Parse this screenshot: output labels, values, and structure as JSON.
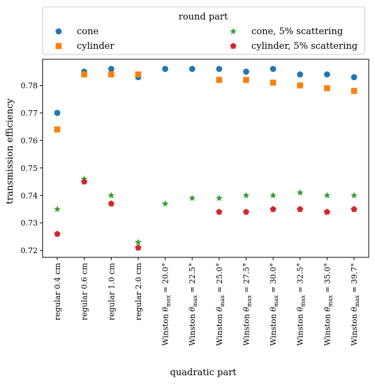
{
  "chart_data": {
    "type": "scatter",
    "categories": [
      "regular 0.4 cm",
      "regular 0.6 cm",
      "regular 1.0 cm",
      "regular 2.0 cm",
      "Winston θmax = 20.0°",
      "Winston θmax = 22.5°",
      "Winston θmax = 25.0°",
      "Winston θmax = 27.5°",
      "Winston θmax = 30.0°",
      "Winston θmax = 32.5°",
      "Winston θmax = 35.0°",
      "Winston θmax = 39.7°"
    ],
    "series": [
      {
        "name": "cone",
        "marker": "circle",
        "color": "#1f77b4",
        "values": [
          0.77,
          0.785,
          0.786,
          0.783,
          0.786,
          0.786,
          0.786,
          0.785,
          0.786,
          0.784,
          0.784,
          0.783
        ]
      },
      {
        "name": "cylinder",
        "marker": "square",
        "color": "#ff7f0e",
        "values": [
          0.764,
          0.784,
          0.784,
          0.784,
          null,
          null,
          0.782,
          0.782,
          0.781,
          0.78,
          0.779,
          0.778
        ]
      },
      {
        "name": "cone, 5% scattering",
        "marker": "star",
        "color": "#2ca02c",
        "values": [
          0.735,
          0.746,
          0.74,
          0.723,
          0.737,
          0.739,
          0.739,
          0.74,
          0.74,
          0.741,
          0.74,
          0.74
        ]
      },
      {
        "name": "cylinder, 5% scattering",
        "marker": "pentagon",
        "color": "#d62728",
        "values": [
          0.726,
          0.745,
          0.737,
          0.721,
          null,
          null,
          0.734,
          0.734,
          0.735,
          0.735,
          0.734,
          0.735
        ]
      }
    ],
    "xlabel": "quadratic part",
    "ylabel": "transmission efficiency",
    "yticks": [
      0.72,
      0.73,
      0.74,
      0.75,
      0.76,
      0.77,
      0.78
    ],
    "ylim": [
      0.7175,
      0.7895
    ],
    "legend": {
      "title": "round part",
      "placement": "top"
    },
    "grid": false
  }
}
